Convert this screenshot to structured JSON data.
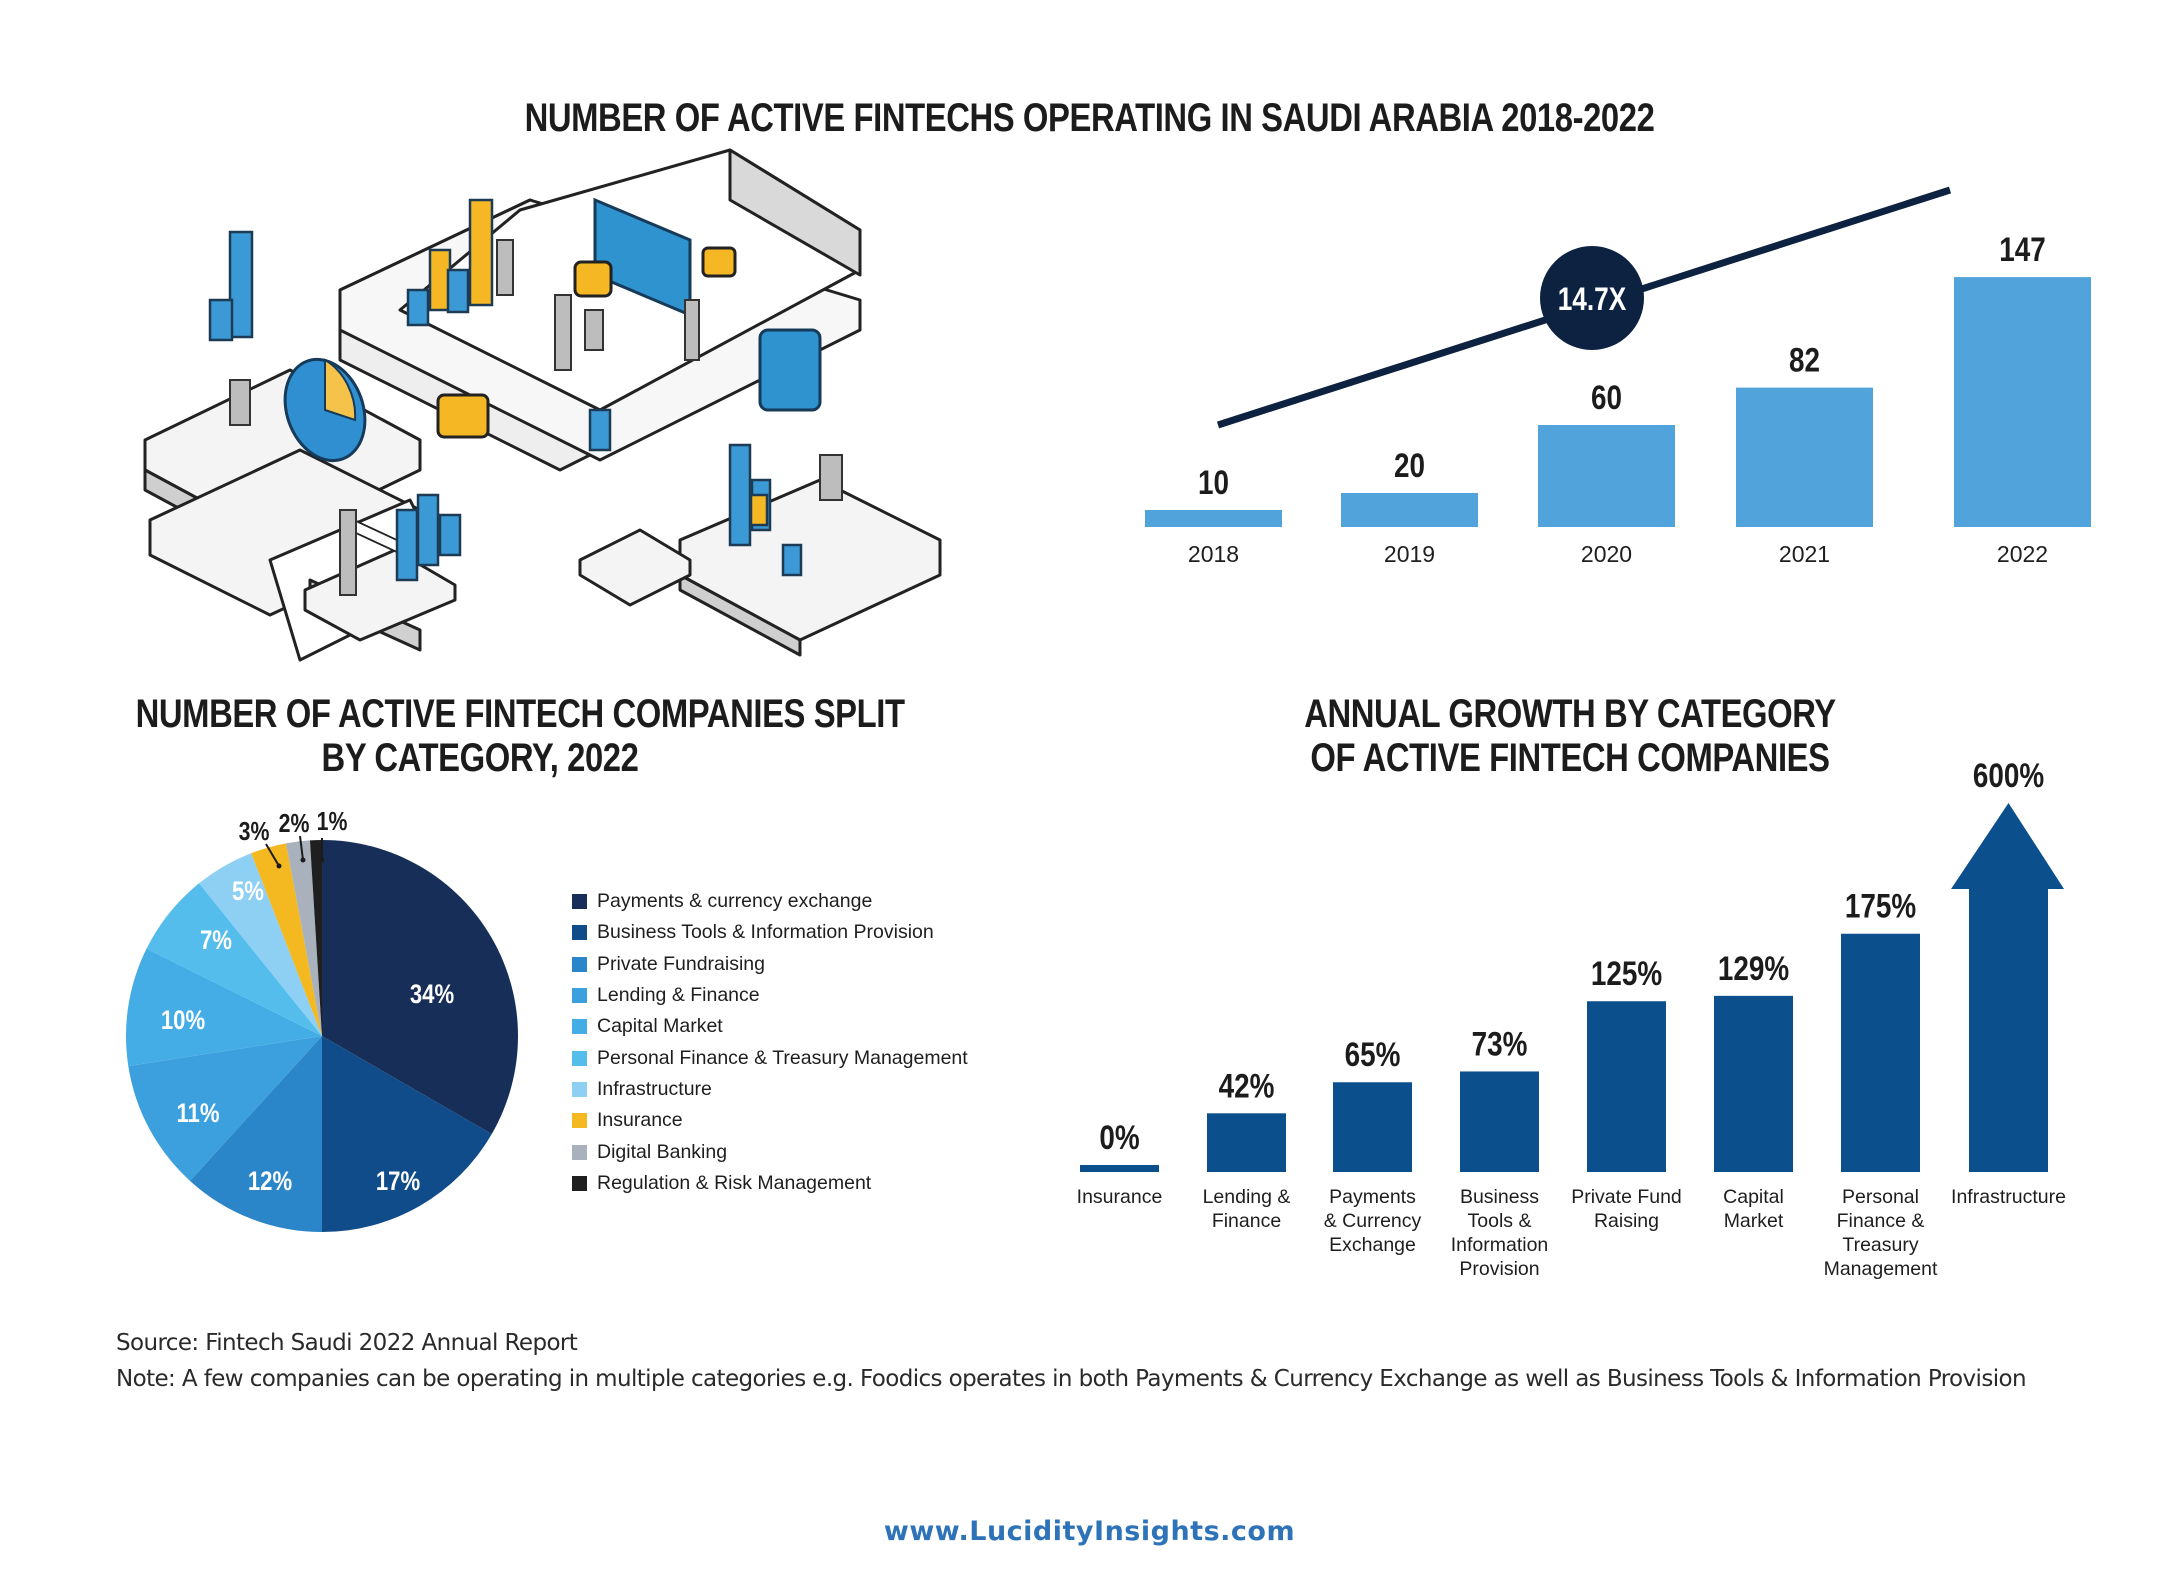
{
  "titles": {
    "main": "NUMBER OF ACTIVE FINTECHS OPERATING IN SAUDI ARABIA 2018-2022",
    "pie_line1": "NUMBER OF ACTIVE FINTECH COMPANIES SPLIT",
    "pie_line2": "BY CATEGORY, 2022",
    "growth_line1": "ANNUAL GROWTH BY CATEGORY",
    "growth_line2": "OF ACTIVE FINTECH COMPANIES"
  },
  "colors": {
    "bar_light_blue": "#51a3db",
    "dark_navy": "#0d2240",
    "growth_blue": "#0b4f8c",
    "url_blue": "#2e73b8"
  },
  "chart_data": [
    {
      "type": "bar",
      "title": "NUMBER OF ACTIVE FINTECHS OPERATING IN SAUDI ARABIA 2018-2022",
      "categories": [
        "2018",
        "2019",
        "2020",
        "2021",
        "2022"
      ],
      "values": [
        10,
        20,
        60,
        82,
        147
      ],
      "data_labels": [
        "10",
        "20",
        "60",
        "82",
        "147"
      ],
      "annotation": "14.7X",
      "trend_line": true,
      "xlabel": "",
      "ylabel": "",
      "ylim": [
        0,
        150
      ],
      "grid": false
    },
    {
      "type": "pie",
      "title": "NUMBER OF ACTIVE FINTECH COMPANIES SPLIT BY CATEGORY, 2022",
      "legend_position": "right",
      "slices": [
        {
          "label": "Payments & currency exchange",
          "value": 34,
          "display": "34%",
          "color": "#172f58"
        },
        {
          "label": "Business Tools & Information Provision",
          "value": 17,
          "display": "17%",
          "color": "#0f4c89"
        },
        {
          "label": "Private Fundraising",
          "value": 12,
          "display": "12%",
          "color": "#2b86c9"
        },
        {
          "label": "Lending & Finance",
          "value": 11,
          "display": "11%",
          "color": "#3ba0dd"
        },
        {
          "label": "Capital Market",
          "value": 10,
          "display": "10%",
          "color": "#45ade6"
        },
        {
          "label": "Personal Finance & Treasury Management",
          "value": 7,
          "display": "7%",
          "color": "#55bdec"
        },
        {
          "label": "Infrastructure",
          "value": 5,
          "display": "5%",
          "color": "#8dd0f3"
        },
        {
          "label": "Insurance",
          "value": 3,
          "display": "3%",
          "color": "#f4b920"
        },
        {
          "label": "Digital Banking",
          "value": 2,
          "display": "2%",
          "color": "#a9b1bc"
        },
        {
          "label": "Regulation & Risk Management",
          "value": 1,
          "display": "1%",
          "color": "#1f1f1f"
        }
      ]
    },
    {
      "type": "bar",
      "title": "ANNUAL GROWTH BY CATEGORY OF ACTIVE FINTECH COMPANIES",
      "categories": [
        [
          "Insurance"
        ],
        [
          "Lending &",
          "Finance"
        ],
        [
          "Payments",
          "& Currency",
          "Exchange"
        ],
        [
          "Business",
          "Tools &",
          "Information",
          "Provision"
        ],
        [
          "Private Fund",
          "Raising"
        ],
        [
          "Capital",
          "Market"
        ],
        [
          "Personal",
          "Finance &",
          "Treasury",
          "Management"
        ],
        [
          "Infrastructure"
        ]
      ],
      "values": [
        0,
        42,
        65,
        73,
        125,
        129,
        175,
        600
      ],
      "data_labels": [
        "0%",
        "42%",
        "65%",
        "73%",
        "125%",
        "129%",
        "175%",
        "600%"
      ],
      "unit": "%",
      "note": "Infrastructure drawn as an upward arrow (off-scale)",
      "xlabel": "",
      "ylabel": "",
      "grid": false
    }
  ],
  "footer": {
    "source": "Source: Fintech Saudi 2022 Annual Report",
    "note": "Note: A few companies can be operating in multiple categories e.g. Foodics operates in both Payments & Currency Exchange as well as Business Tools & Information Provision",
    "url": "www.LucidityInsights.com"
  },
  "illustration": {
    "icon": "isometric-office-illustration"
  }
}
